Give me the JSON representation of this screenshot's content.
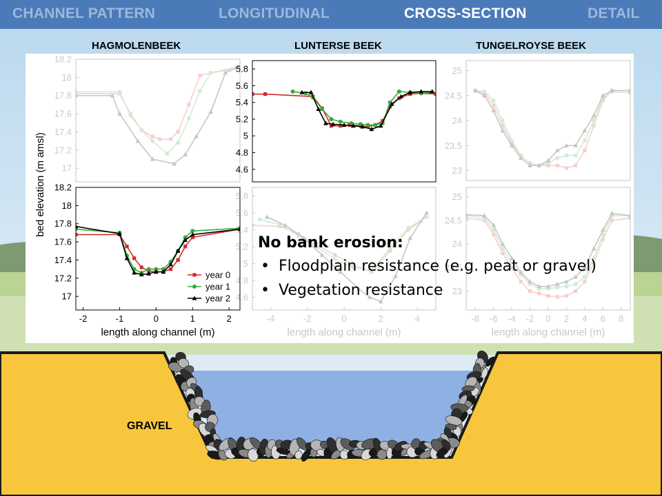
{
  "nav": {
    "tabs": [
      {
        "label": "CHANNEL PATTERN",
        "active": false
      },
      {
        "label": "LONGITUDINAL",
        "active": false
      },
      {
        "label": "CROSS-SECTION",
        "active": true
      },
      {
        "label": "DETAIL",
        "active": false
      }
    ]
  },
  "creeks": [
    "HAGMOLENBEEK",
    "LUNTERSE BEEK",
    "TUNGELROYSE BEEK"
  ],
  "note": {
    "heading": "No bank erosion:",
    "bullets": [
      "Floodplain resistance (e.g. peat or gravel)",
      "Vegetation resistance"
    ]
  },
  "diagram": {
    "gravel_label": "GRAVEL"
  },
  "colors": {
    "year0": "#d42a2a",
    "year1": "#3aa83a",
    "year2": "#000000",
    "nav_bar": "#4b7ab8",
    "ground": "#f7c63c",
    "water": "#8fb0e3"
  },
  "chart_data": [
    {
      "id": "hag-top",
      "type": "line",
      "faded": true,
      "ylim": [
        16.85,
        18.2
      ],
      "yticks": [
        17,
        17.2,
        17.4,
        17.6,
        17.8,
        18,
        18.2
      ],
      "xlim": [
        -2.2,
        2.3
      ],
      "show_xticks": false,
      "ylabel": "bed elevation (m amsl)",
      "series": [
        {
          "key": "year0",
          "x": [
            -2.2,
            -1.0,
            -0.7,
            -0.4,
            -0.1,
            0.1,
            0.4,
            0.6,
            0.9,
            1.2,
            1.5,
            2.3
          ],
          "y": [
            17.82,
            17.82,
            17.6,
            17.42,
            17.35,
            17.32,
            17.32,
            17.4,
            17.7,
            18.02,
            18.05,
            18.12
          ]
        },
        {
          "key": "year1",
          "x": [
            -2.2,
            -1.0,
            -0.7,
            -0.4,
            -0.1,
            0.3,
            0.6,
            0.9,
            1.2,
            1.5,
            2.3
          ],
          "y": [
            17.84,
            17.84,
            17.58,
            17.42,
            17.3,
            17.16,
            17.28,
            17.55,
            17.85,
            18.05,
            18.1
          ]
        },
        {
          "key": "year2",
          "x": [
            -2.2,
            -1.2,
            -1.0,
            -0.5,
            -0.1,
            0.5,
            0.8,
            1.1,
            1.5,
            1.9,
            2.3
          ],
          "y": [
            17.8,
            17.8,
            17.6,
            17.3,
            17.1,
            17.05,
            17.15,
            17.35,
            17.62,
            18.05,
            18.12
          ]
        }
      ]
    },
    {
      "id": "hag-bot",
      "type": "line",
      "faded": false,
      "ylim": [
        16.85,
        18.2
      ],
      "yticks": [
        17,
        17.2,
        17.4,
        17.6,
        17.8,
        18,
        18.2
      ],
      "xlim": [
        -2.2,
        2.3
      ],
      "xticks": [
        -2,
        -1,
        0,
        1,
        2
      ],
      "xlabel": "length along channel (m)",
      "legend": [
        "year 0",
        "year 1",
        "year 2"
      ],
      "legend_position": "bottom-right",
      "series": [
        {
          "key": "year0",
          "name": "year 0",
          "x": [
            -2.2,
            -1.0,
            -0.8,
            -0.6,
            -0.4,
            -0.2,
            0.0,
            0.2,
            0.4,
            0.6,
            0.8,
            1.0,
            2.3
          ],
          "y": [
            17.68,
            17.68,
            17.55,
            17.42,
            17.32,
            17.28,
            17.27,
            17.27,
            17.3,
            17.4,
            17.55,
            17.65,
            17.74
          ]
        },
        {
          "key": "year1",
          "name": "year 1",
          "x": [
            -2.2,
            -1.0,
            -0.8,
            -0.6,
            -0.4,
            -0.2,
            0.0,
            0.2,
            0.4,
            0.6,
            0.8,
            1.0,
            2.3
          ],
          "y": [
            17.74,
            17.7,
            17.45,
            17.3,
            17.26,
            17.3,
            17.3,
            17.3,
            17.38,
            17.5,
            17.65,
            17.72,
            17.75
          ]
        },
        {
          "key": "year2",
          "name": "year 2",
          "x": [
            -2.2,
            -1.0,
            -0.8,
            -0.6,
            -0.4,
            -0.2,
            0.0,
            0.2,
            0.4,
            0.6,
            0.8,
            1.0,
            2.3
          ],
          "y": [
            17.77,
            17.69,
            17.42,
            17.26,
            17.24,
            17.25,
            17.27,
            17.27,
            17.35,
            17.5,
            17.62,
            17.68,
            17.74
          ]
        }
      ]
    },
    {
      "id": "lun-top",
      "type": "line",
      "faded": false,
      "ylim": [
        4.45,
        5.9
      ],
      "yticks": [
        4.6,
        4.8,
        5,
        5.2,
        5.4,
        5.6,
        5.8
      ],
      "xlim": [
        -5,
        5
      ],
      "show_xticks": false,
      "series": [
        {
          "key": "year0",
          "x": [
            -5,
            -4.3,
            -1.7,
            -1.2,
            -0.7,
            -0.2,
            0.3,
            0.9,
            1.3,
            1.7,
            2.1,
            2.5,
            3.0,
            3.6,
            4.2,
            5.0
          ],
          "y": [
            5.5,
            5.5,
            5.47,
            5.33,
            5.12,
            5.12,
            5.13,
            5.12,
            5.11,
            5.13,
            5.18,
            5.35,
            5.45,
            5.5,
            5.51,
            5.5
          ]
        },
        {
          "key": "year1",
          "x": [
            -2.8,
            -2.1,
            -1.7,
            -1.2,
            -0.7,
            -0.2,
            0.4,
            0.9,
            1.3,
            1.7,
            2.1,
            2.5,
            3.0,
            3.6,
            4.2,
            4.8
          ],
          "y": [
            5.53,
            5.51,
            5.46,
            5.32,
            5.2,
            5.17,
            5.15,
            5.14,
            5.13,
            5.13,
            5.15,
            5.4,
            5.53,
            5.52,
            5.51,
            5.52
          ]
        },
        {
          "key": "year2",
          "x": [
            -2.3,
            -1.8,
            -1.4,
            -1.0,
            -0.6,
            0.0,
            0.5,
            1.0,
            1.5,
            2.0,
            2.6,
            3.1,
            3.6,
            4.2,
            4.8
          ],
          "y": [
            5.52,
            5.52,
            5.32,
            5.15,
            5.14,
            5.13,
            5.12,
            5.11,
            5.08,
            5.12,
            5.38,
            5.47,
            5.52,
            5.53,
            5.53
          ]
        }
      ]
    },
    {
      "id": "lun-bot",
      "type": "line",
      "faded": true,
      "ylim": [
        4.45,
        5.9
      ],
      "yticks": [
        4.6,
        4.8,
        5,
        5.2,
        5.4,
        5.6,
        5.8
      ],
      "xlim": [
        -5,
        5
      ],
      "xticks": [
        -4,
        -2,
        0,
        2,
        4
      ],
      "xlabel": "length along channel (m)",
      "series": [
        {
          "key": "year0",
          "x": [
            -5,
            -3.5,
            -2.5,
            -1.5,
            -0.5,
            0.5,
            1.5,
            2.5,
            3.5,
            4.2
          ],
          "y": [
            5.45,
            5.44,
            5.35,
            5.22,
            5.1,
            4.98,
            4.9,
            5.15,
            5.4,
            5.5
          ]
        },
        {
          "key": "year1",
          "x": [
            -4.6,
            -3.5,
            -2.5,
            -1.5,
            -0.5,
            0.5,
            1.5,
            2.5,
            3.5,
            4.5
          ],
          "y": [
            5.52,
            5.46,
            5.33,
            5.2,
            5.05,
            4.95,
            4.92,
            5.18,
            5.42,
            5.55
          ]
        },
        {
          "key": "year2",
          "x": [
            -4.2,
            -3.2,
            -2.2,
            -1.2,
            -0.2,
            0.8,
            1.4,
            2.0,
            2.8,
            3.6,
            4.5
          ],
          "y": [
            5.55,
            5.45,
            5.3,
            5.1,
            4.9,
            4.7,
            4.6,
            4.55,
            4.85,
            5.3,
            5.6
          ]
        }
      ]
    },
    {
      "id": "tun-top",
      "type": "line",
      "faded": true,
      "ylim": [
        22.8,
        25.2
      ],
      "yticks": [
        23,
        23.5,
        24,
        24.5,
        25
      ],
      "xlim": [
        -9,
        9
      ],
      "show_xticks": false,
      "series": [
        {
          "key": "year0",
          "x": [
            -8,
            -7,
            -6,
            -5,
            -4,
            -3,
            -2,
            -1,
            0,
            1,
            2,
            3,
            4,
            5,
            6,
            7,
            9
          ],
          "y": [
            24.6,
            24.55,
            24.3,
            23.9,
            23.55,
            23.3,
            23.15,
            23.1,
            23.1,
            23.1,
            23.05,
            23.1,
            23.4,
            23.9,
            24.4,
            24.6,
            24.6
          ]
        },
        {
          "key": "year1",
          "x": [
            -8,
            -7,
            -6,
            -5,
            -4,
            -3,
            -2,
            -1,
            0,
            1,
            2,
            3,
            4,
            5,
            6,
            7,
            9
          ],
          "y": [
            24.6,
            24.58,
            24.4,
            24.0,
            23.6,
            23.3,
            23.15,
            23.1,
            23.15,
            23.25,
            23.3,
            23.3,
            23.6,
            24.0,
            24.45,
            24.58,
            24.55
          ]
        },
        {
          "key": "year2",
          "x": [
            -8,
            -7,
            -6,
            -5,
            -4,
            -3,
            -2,
            -1,
            0,
            1,
            2,
            3,
            4,
            5,
            6,
            7,
            9
          ],
          "y": [
            24.6,
            24.5,
            24.2,
            23.8,
            23.5,
            23.25,
            23.1,
            23.1,
            23.2,
            23.4,
            23.5,
            23.5,
            23.8,
            24.1,
            24.5,
            24.6,
            24.6
          ]
        }
      ]
    },
    {
      "id": "tun-bot",
      "type": "line",
      "faded": true,
      "ylim": [
        22.6,
        25.2
      ],
      "yticks": [
        23,
        23.5,
        24,
        24.5,
        25
      ],
      "xlim": [
        -9,
        9
      ],
      "xticks": [
        -8,
        -6,
        -4,
        -2,
        0,
        2,
        4,
        6,
        8
      ],
      "xlabel": "length along channel (m)",
      "series": [
        {
          "key": "year0",
          "x": [
            -9,
            -7,
            -6,
            -5,
            -4,
            -3,
            -2,
            -1,
            0,
            1,
            2,
            3,
            4,
            5,
            6,
            7,
            9
          ],
          "y": [
            24.55,
            24.5,
            24.2,
            23.8,
            23.5,
            23.2,
            23.0,
            22.95,
            22.9,
            22.88,
            22.9,
            23.0,
            23.2,
            23.6,
            24.1,
            24.5,
            24.55
          ]
        },
        {
          "key": "year1",
          "x": [
            -9,
            -7,
            -6,
            -5,
            -4,
            -3,
            -2,
            -1,
            0,
            1,
            2,
            3,
            4,
            5,
            6,
            7,
            9
          ],
          "y": [
            24.6,
            24.55,
            24.3,
            23.9,
            23.6,
            23.35,
            23.15,
            23.05,
            23.05,
            23.08,
            23.1,
            23.15,
            23.3,
            23.7,
            24.2,
            24.6,
            24.6
          ]
        },
        {
          "key": "year2",
          "x": [
            -9,
            -7,
            -6,
            -5,
            -4,
            -3,
            -2,
            -1,
            0,
            1,
            2,
            3,
            4,
            5,
            6,
            7,
            9
          ],
          "y": [
            24.62,
            24.6,
            24.4,
            24.0,
            23.7,
            23.4,
            23.2,
            23.1,
            23.1,
            23.15,
            23.2,
            23.3,
            23.5,
            23.9,
            24.3,
            24.65,
            24.6
          ]
        }
      ]
    }
  ]
}
